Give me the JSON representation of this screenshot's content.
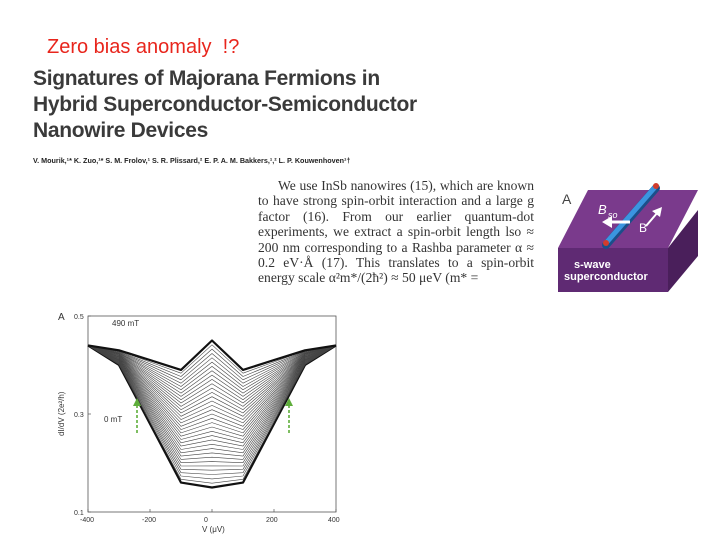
{
  "slide": {
    "title": "Zero bias anomaly  !?"
  },
  "paper": {
    "title_lines": [
      "Signatures of Majorana Fermions in",
      "Hybrid Superconductor-Semiconductor",
      "Nanowire Devices"
    ],
    "authors": "V. Mourik,¹* K. Zuo,¹* S. M. Frolov,¹ S. R. Plissard,² E. P. A. M. Bakkers,¹,² L. P. Kouwenhoven¹†",
    "abstract_text": "We use InSb nanowires (15), which are known to have strong spin-orbit interaction and a large g factor (16). From our earlier quantum-dot experiments, we extract a spin-orbit length lso ≈ 200 nm corresponding to a Rashba parameter α ≈ 0.2 eV·Å (17). This translates to a spin-orbit energy scale α²m*/(2ħ²) ≈ 50 μeV (m* ="
  },
  "figure_device": {
    "panel_label": "A",
    "field_so_label": "B",
    "field_so_sub": "so",
    "field_b_label": "B",
    "substrate_label_1": "s-wave",
    "substrate_label_2": "superconductor",
    "colors": {
      "block_top": "#7a3a8c",
      "block_front": "#5f2a73",
      "block_side": "#4a1f5b",
      "wire": "#2f86d6"
    }
  },
  "figure_plot": {
    "panel_label": "A",
    "top_curve_label": "490 mT",
    "bottom_curve_label": "0 mT",
    "ylabel": "dI/dV (2e²/h)",
    "xlabel": "V (μV)",
    "x_ticks": [
      "-400",
      "-200",
      "0",
      "200",
      "400"
    ],
    "y_ticks": [
      "0.5",
      "0.3",
      "0.1"
    ],
    "arrow_color": "#5fae3b"
  },
  "chart_data": {
    "type": "line",
    "title": "",
    "xlabel": "V (μV)",
    "ylabel": "dI/dV (2e²/h)",
    "xlim": [
      -400,
      400
    ],
    "ylim": [
      0.1,
      0.5
    ],
    "series": [
      {
        "name": "0 mT",
        "x": [
          -400,
          -300,
          -200,
          -100,
          0,
          100,
          200,
          300,
          400
        ],
        "y": [
          0.44,
          0.4,
          0.28,
          0.16,
          0.15,
          0.16,
          0.28,
          0.4,
          0.44
        ]
      },
      {
        "name": "490 mT",
        "x": [
          -400,
          -300,
          -200,
          -100,
          0,
          100,
          200,
          300,
          400
        ],
        "y": [
          0.44,
          0.43,
          0.41,
          0.39,
          0.45,
          0.39,
          0.41,
          0.43,
          0.44
        ]
      }
    ]
  }
}
